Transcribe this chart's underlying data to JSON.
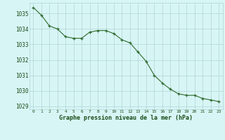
{
  "x": [
    0,
    1,
    2,
    3,
    4,
    5,
    6,
    7,
    8,
    9,
    10,
    11,
    12,
    13,
    14,
    15,
    16,
    17,
    18,
    19,
    20,
    21,
    22,
    23
  ],
  "y": [
    1035.4,
    1034.9,
    1034.2,
    1034.0,
    1033.5,
    1033.4,
    1033.4,
    1033.8,
    1033.9,
    1033.9,
    1033.7,
    1033.3,
    1033.1,
    1032.5,
    1031.9,
    1031.0,
    1030.5,
    1030.1,
    1029.8,
    1029.7,
    1029.7,
    1029.5,
    1029.4,
    1029.3
  ],
  "line_color": "#2d6a2d",
  "marker_color": "#2d6a2d",
  "bg_color": "#d8f5f5",
  "grid_color": "#aed4d4",
  "xlabel": "Graphe pression niveau de la mer (hPa)",
  "xlabel_color": "#1a4d1a",
  "tick_color": "#1a4d1a",
  "ylim": [
    1028.8,
    1035.7
  ],
  "yticks": [
    1029,
    1030,
    1031,
    1032,
    1033,
    1034,
    1035
  ],
  "xticks": [
    0,
    1,
    2,
    3,
    4,
    5,
    6,
    7,
    8,
    9,
    10,
    11,
    12,
    13,
    14,
    15,
    16,
    17,
    18,
    19,
    20,
    21,
    22,
    23
  ]
}
